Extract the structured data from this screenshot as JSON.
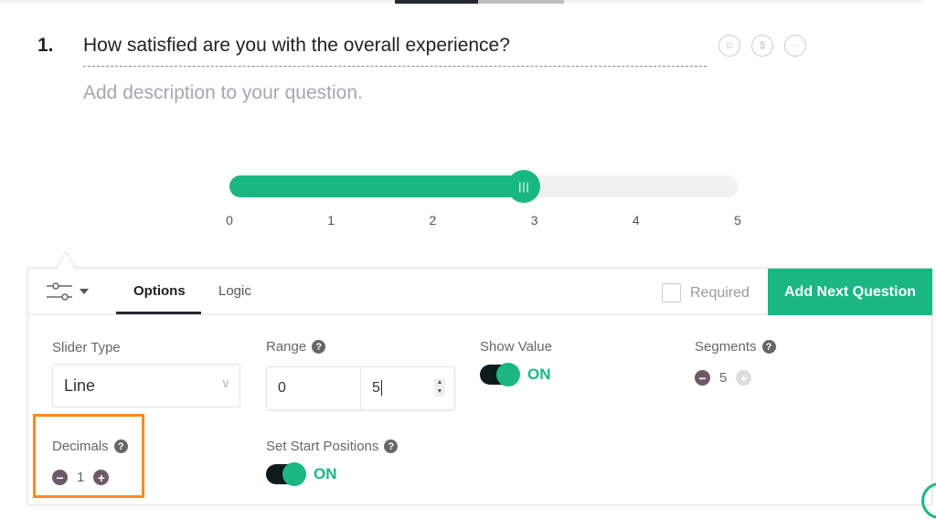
{
  "question": {
    "number": "1.",
    "title": "How satisfied are you with the overall experience?",
    "description_placeholder": "Add description to your question.",
    "icons": [
      "smiley-icon",
      "dollar-icon",
      "more-icon"
    ]
  },
  "slider": {
    "min": 0,
    "max": 5,
    "value": 2.9,
    "tick_labels": [
      "0",
      "1",
      "2",
      "3",
      "4",
      "5"
    ],
    "handle_glyph": "|||",
    "accent_color": "#1bb783"
  },
  "panel": {
    "tabs": [
      {
        "label": "Options",
        "active": true
      },
      {
        "label": "Logic",
        "active": false
      }
    ],
    "required_label": "Required",
    "required_checked": false,
    "add_next_label": "Add Next Question",
    "slider_type": {
      "label": "Slider Type",
      "value": "Line"
    },
    "range": {
      "label": "Range",
      "min": "0",
      "max": "5"
    },
    "show_value": {
      "label": "Show Value",
      "state": "ON"
    },
    "segments": {
      "label": "Segments",
      "value": "5"
    },
    "decimals": {
      "label": "Decimals",
      "value": "1"
    },
    "start_positions": {
      "label": "Set Start Positions",
      "state": "ON"
    }
  }
}
